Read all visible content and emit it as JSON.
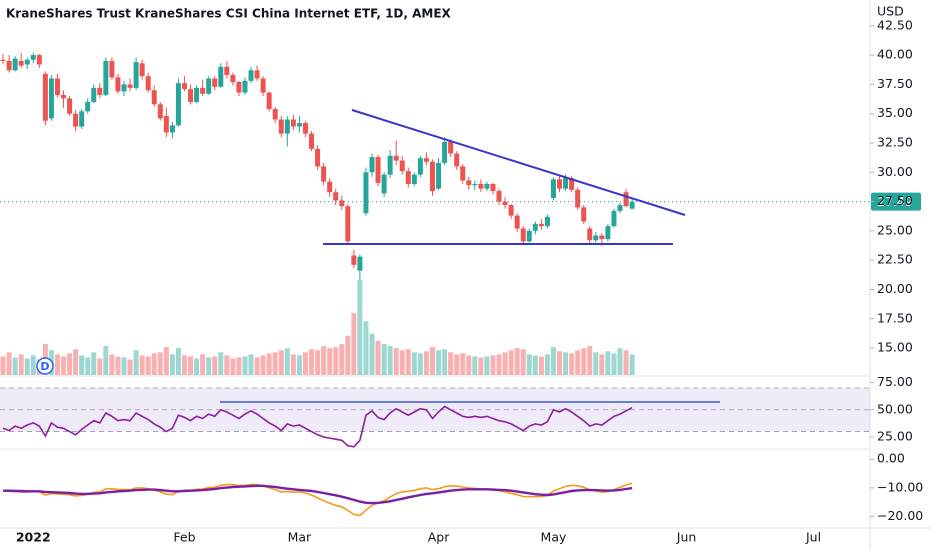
{
  "chart_data": [
    {
      "type": "candlestick",
      "title": "KraneShares Trust KraneShares CSI China Internet ETF, 1D, AMEX",
      "y_axis_label": "USD",
      "event_label": "D",
      "up_color": "#26a69a",
      "down_color": "#ef5350",
      "xlim": [
        -0.5,
        143
      ],
      "xticks": [
        {
          "value": 5,
          "label": "2022"
        },
        {
          "value": 30,
          "label": "Feb"
        },
        {
          "value": 49,
          "label": "Mar"
        },
        {
          "value": 72,
          "label": "Apr"
        },
        {
          "value": 91,
          "label": "May"
        },
        {
          "value": 113,
          "label": "Jun"
        },
        {
          "value": 134,
          "label": "Jul"
        }
      ],
      "ylim": [
        12.7,
        44.7
      ],
      "yticks": [
        {
          "value": 15,
          "label": "15.00"
        },
        {
          "value": 17.5,
          "label": "17.50"
        },
        {
          "value": 20,
          "label": "20.00"
        },
        {
          "value": 22.5,
          "label": "22.50"
        },
        {
          "value": 25,
          "label": "25.00"
        },
        {
          "value": 27.5,
          "label": "27.50"
        },
        {
          "value": 30,
          "label": "30.00"
        },
        {
          "value": 32.5,
          "label": "32.50"
        },
        {
          "value": 35,
          "label": "35.00"
        },
        {
          "value": 37.5,
          "label": "37.50"
        },
        {
          "value": 40,
          "label": "40.00"
        },
        {
          "value": 42.5,
          "label": "42.50"
        }
      ],
      "open": [
        39.6,
        39.5,
        38.7,
        39.5,
        39.2,
        39.6,
        40.0,
        38.4,
        34.6,
        38.0,
        36.6,
        36.3,
        35.0,
        33.9,
        35.2,
        36.0,
        37.2,
        36.6,
        39.5,
        38.1,
        36.9,
        37.5,
        37.2,
        39.3,
        38.2,
        37.0,
        35.8,
        34.8,
        33.4,
        34.0,
        37.6,
        37.1,
        36.0,
        37.2,
        36.7,
        38.0,
        37.3,
        39.0,
        38.3,
        37.7,
        36.8,
        37.8,
        38.7,
        38.0,
        36.8,
        35.4,
        34.5,
        33.3,
        34.5,
        33.9,
        34.2,
        33.3,
        32.0,
        30.5,
        29.2,
        28.3,
        27.6,
        27.1,
        22.9,
        21.6,
        26.5,
        30.0,
        31.3,
        28.2,
        29.8,
        31.4,
        31.0,
        30.1,
        29.0,
        29.8,
        31.2,
        30.9,
        28.6,
        30.8,
        32.6,
        31.6,
        30.5,
        29.3,
        28.9,
        29.0,
        28.6,
        29.0,
        28.4,
        27.5,
        27.2,
        26.3,
        25.2,
        24.1,
        25.0,
        25.6,
        25.4,
        27.8,
        29.4,
        28.6,
        29.5,
        28.5,
        27.0,
        25.2,
        24.2,
        24.6,
        24.3,
        25.4,
        26.7,
        28.3,
        26.9
      ],
      "high": [
        40.1,
        40.0,
        39.9,
        40.2,
        39.8,
        40.2,
        40.1,
        38.6,
        38.3,
        38.4,
        37.0,
        36.5,
        35.3,
        35.4,
        36.3,
        37.5,
        37.6,
        39.8,
        39.8,
        38.4,
        37.8,
        38.0,
        39.8,
        39.6,
        38.5,
        37.4,
        36.0,
        35.5,
        34.3,
        38.0,
        38.2,
        37.5,
        37.4,
        37.9,
        38.2,
        38.2,
        39.3,
        39.5,
        38.5,
        37.8,
        38.1,
        39.0,
        39.1,
        38.2,
        36.9,
        35.6,
        34.8,
        34.8,
        34.9,
        34.8,
        34.4,
        33.5,
        32.3,
        30.8,
        29.5,
        28.6,
        28.0,
        27.3,
        23.4,
        23.0,
        30.4,
        31.6,
        31.5,
        30.0,
        31.9,
        32.7,
        31.4,
        30.4,
        30.0,
        31.4,
        31.7,
        31.1,
        31.2,
        33.0,
        32.8,
        31.8,
        30.7,
        29.6,
        29.3,
        29.4,
        29.2,
        29.1,
        28.6,
        27.9,
        27.3,
        26.5,
        25.4,
        25.2,
        25.8,
        26.0,
        26.4,
        29.6,
        29.7,
        29.8,
        29.7,
        28.7,
        27.2,
        25.4,
        24.9,
        24.8,
        25.6,
        26.9,
        27.4,
        28.6,
        27.7
      ],
      "low": [
        39.2,
        38.5,
        38.6,
        38.9,
        38.8,
        39.3,
        38.9,
        34.0,
        34.4,
        36.4,
        35.5,
        34.8,
        33.5,
        33.7,
        35.0,
        35.9,
        36.3,
        36.5,
        37.9,
        36.7,
        36.5,
        36.9,
        37.0,
        37.9,
        36.8,
        35.6,
        34.4,
        33.0,
        32.9,
        33.9,
        36.9,
        35.8,
        35.9,
        36.5,
        36.6,
        37.0,
        37.2,
        38.0,
        37.4,
        36.5,
        36.6,
        37.6,
        37.8,
        36.5,
        35.2,
        34.2,
        33.0,
        32.2,
        33.6,
        33.4,
        33.0,
        31.8,
        30.2,
        28.9,
        27.9,
        27.2,
        26.8,
        23.9,
        21.8,
        20.8,
        26.3,
        29.6,
        28.8,
        27.9,
        29.5,
        30.6,
        29.8,
        28.7,
        28.8,
        29.6,
        30.6,
        28.0,
        28.5,
        30.6,
        31.3,
        30.2,
        29.0,
        28.5,
        28.5,
        28.3,
        28.4,
        28.1,
        27.2,
        26.9,
        26.0,
        24.9,
        23.8,
        24.0,
        24.7,
        25.1,
        25.2,
        27.6,
        28.3,
        28.4,
        28.3,
        26.8,
        25.6,
        23.9,
        24.0,
        23.7,
        24.1,
        25.3,
        26.5,
        27.0,
        26.8
      ],
      "close": [
        39.5,
        38.7,
        39.7,
        39.1,
        39.6,
        40.0,
        39.2,
        34.4,
        38.0,
        36.6,
        36.3,
        35.0,
        33.9,
        35.2,
        36.0,
        37.2,
        36.6,
        39.5,
        38.1,
        36.9,
        37.5,
        37.2,
        39.4,
        38.2,
        37.0,
        35.8,
        34.6,
        33.4,
        34.0,
        37.6,
        37.1,
        36.0,
        37.2,
        36.7,
        38.0,
        37.3,
        39.0,
        38.3,
        37.7,
        36.8,
        37.8,
        38.7,
        38.0,
        36.8,
        35.4,
        34.5,
        33.3,
        34.5,
        33.9,
        34.2,
        33.3,
        32.0,
        30.5,
        29.2,
        28.3,
        27.6,
        27.1,
        24.1,
        22.1,
        22.8,
        30.0,
        31.3,
        29.1,
        29.8,
        31.4,
        31.0,
        30.1,
        29.0,
        29.8,
        31.2,
        30.9,
        28.4,
        30.8,
        32.6,
        31.6,
        30.5,
        29.3,
        28.9,
        29.0,
        28.6,
        29.0,
        28.4,
        27.5,
        27.2,
        26.3,
        25.2,
        24.1,
        25.0,
        25.6,
        25.4,
        26.2,
        29.4,
        28.6,
        29.5,
        28.5,
        27.0,
        25.8,
        24.2,
        24.6,
        24.3,
        25.4,
        26.7,
        27.2,
        27.1,
        27.49
      ],
      "volume": [
        18,
        22,
        17,
        20,
        16,
        19,
        15,
        30,
        24,
        20,
        18,
        21,
        25,
        19,
        17,
        22,
        16,
        28,
        20,
        18,
        17,
        15,
        24,
        19,
        18,
        21,
        22,
        27,
        20,
        26,
        19,
        18,
        16,
        20,
        17,
        18,
        22,
        19,
        16,
        17,
        18,
        20,
        17,
        19,
        21,
        22,
        24,
        26,
        20,
        19,
        22,
        25,
        24,
        28,
        26,
        27,
        30,
        38,
        60,
        92,
        52,
        40,
        33,
        30,
        28,
        26,
        24,
        25,
        22,
        21,
        23,
        27,
        24,
        25,
        22,
        20,
        21,
        19,
        18,
        17,
        18,
        19,
        20,
        22,
        24,
        26,
        25,
        20,
        19,
        18,
        20,
        27,
        23,
        22,
        21,
        24,
        26,
        28,
        22,
        20,
        23,
        21,
        26,
        24,
        20
      ]
    },
    {
      "type": "line",
      "ylim": [
        14,
        81
      ],
      "yticks": [
        {
          "value": 25,
          "label": "25.00"
        },
        {
          "value": 50,
          "label": "50.00"
        },
        {
          "value": 75,
          "label": "75.00"
        }
      ],
      "levels": [
        70,
        50,
        30
      ],
      "band_color": "rgba(126,87,194,0.12)",
      "series": [
        {
          "color": "#8e1fa0",
          "values": [
            33,
            31,
            35,
            33,
            36,
            38,
            35,
            26,
            38,
            34,
            33,
            30,
            27,
            32,
            36,
            40,
            38,
            47,
            44,
            40,
            41,
            40,
            47,
            44,
            41,
            37,
            34,
            30,
            33,
            45,
            43,
            40,
            44,
            42,
            46,
            44,
            50,
            48,
            45,
            42,
            46,
            49,
            46,
            42,
            38,
            35,
            31,
            37,
            35,
            36,
            33,
            30,
            27,
            25,
            24,
            23,
            22,
            17,
            16,
            22,
            45,
            49,
            43,
            41,
            47,
            51,
            48,
            45,
            48,
            51,
            50,
            42,
            48,
            53,
            50,
            47,
            44,
            43,
            44,
            43,
            44,
            42,
            40,
            39,
            37,
            34,
            31,
            35,
            37,
            36,
            39,
            50,
            48,
            51,
            48,
            44,
            40,
            35,
            37,
            36,
            40,
            44,
            46,
            49,
            52
          ]
        }
      ]
    },
    {
      "type": "line",
      "ylim": [
        -24,
        3.2
      ],
      "yticks": [
        {
          "value": 0,
          "label": "0.00"
        },
        {
          "value": -10,
          "label": "−10.00"
        },
        {
          "value": -20,
          "label": "−20.00"
        }
      ],
      "series": [
        {
          "color": "#f59a1b",
          "values": [
            -11,
            -11.3,
            -11.2,
            -11.5,
            -11.4,
            -11.2,
            -11.4,
            -12.5,
            -12,
            -12.1,
            -12.2,
            -12.4,
            -12.8,
            -12.6,
            -12.2,
            -11.6,
            -11.4,
            -10.4,
            -10.3,
            -10.6,
            -10.6,
            -10.7,
            -10,
            -10,
            -10.3,
            -10.8,
            -11.4,
            -12.2,
            -12.4,
            -11.3,
            -10.8,
            -10.9,
            -10.5,
            -10.4,
            -9.9,
            -9.8,
            -9.1,
            -8.8,
            -8.9,
            -9.2,
            -9.1,
            -8.8,
            -8.9,
            -9.3,
            -10,
            -10.6,
            -11.4,
            -11.3,
            -11.5,
            -11.4,
            -11.8,
            -12.5,
            -13.5,
            -14.5,
            -15.4,
            -16.1,
            -16.6,
            -17.9,
            -19.3,
            -19.6,
            -17.8,
            -16.1,
            -15.3,
            -14.5,
            -13.2,
            -12,
            -11.4,
            -11.2,
            -10.9,
            -10.3,
            -10,
            -10.6,
            -10.3,
            -9.6,
            -9.3,
            -9.4,
            -9.7,
            -10,
            -10.2,
            -10.4,
            -10.5,
            -10.7,
            -11,
            -11.4,
            -11.9,
            -12.4,
            -13,
            -13.1,
            -13.1,
            -13,
            -12.7,
            -11.1,
            -10.3,
            -9.5,
            -9.1,
            -9.3,
            -9.8,
            -10.7,
            -11.1,
            -11.5,
            -11.3,
            -10.6,
            -9.8,
            -9,
            -8.4
          ]
        },
        {
          "color": "#7b1fa2",
          "values": [
            -11,
            -11,
            -11.1,
            -11.1,
            -11.2,
            -11.2,
            -11.2,
            -11.4,
            -11.5,
            -11.6,
            -11.7,
            -11.8,
            -12,
            -12.1,
            -12.1,
            -12,
            -11.9,
            -11.6,
            -11.4,
            -11.2,
            -11.1,
            -11,
            -10.8,
            -10.7,
            -10.6,
            -10.6,
            -10.8,
            -11,
            -11.2,
            -11.2,
            -11.1,
            -11,
            -10.9,
            -10.8,
            -10.6,
            -10.4,
            -10.1,
            -9.9,
            -9.7,
            -9.6,
            -9.5,
            -9.4,
            -9.3,
            -9.3,
            -9.5,
            -9.7,
            -10,
            -10.3,
            -10.5,
            -10.7,
            -10.9,
            -11.1,
            -11.4,
            -11.8,
            -12.2,
            -12.6,
            -13.1,
            -13.6,
            -14.2,
            -14.8,
            -15.2,
            -15.3,
            -15.2,
            -15,
            -14.7,
            -14.2,
            -13.8,
            -13.3,
            -12.9,
            -12.5,
            -12.1,
            -11.9,
            -11.6,
            -11.3,
            -11,
            -10.8,
            -10.6,
            -10.5,
            -10.5,
            -10.5,
            -10.5,
            -10.6,
            -10.7,
            -10.8,
            -11,
            -11.3,
            -11.6,
            -11.9,
            -12.2,
            -12.4,
            -12.5,
            -12.3,
            -11.9,
            -11.5,
            -11.1,
            -10.9,
            -10.8,
            -10.8,
            -10.8,
            -10.9,
            -11,
            -10.9,
            -10.7,
            -10.4,
            -10.1
          ]
        }
      ]
    }
  ]
}
